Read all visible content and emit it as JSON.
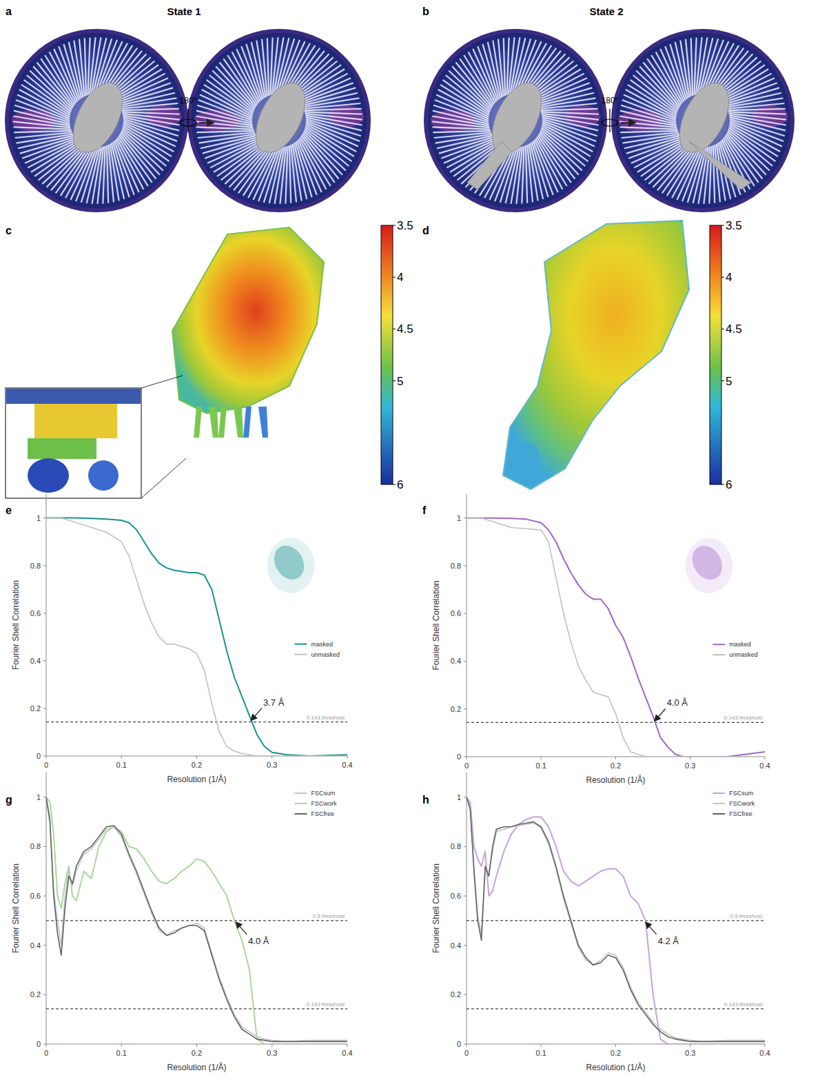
{
  "figure": {
    "panels": [
      "a",
      "b",
      "c",
      "d",
      "e",
      "f",
      "g",
      "h"
    ],
    "states": [
      "State 1",
      "State 2"
    ],
    "rotation": "180°",
    "colorbars": [
      {
        "range": [
          3.5,
          6
        ],
        "ticks": [
          3.5,
          4,
          4.5,
          5,
          6
        ]
      },
      {
        "range": [
          3.5,
          6
        ],
        "ticks": [
          3.5,
          4,
          4.5,
          5,
          6
        ]
      }
    ]
  },
  "chart_data": [
    {
      "type": "line",
      "x_label": "Resolution (1/Å)",
      "y_label": "Fourier Shell Correlation",
      "xlim": [
        0,
        0.4
      ],
      "ylim": [
        0,
        1.1
      ],
      "xticks": [
        0,
        0.1,
        0.2,
        0.3,
        0.4
      ],
      "yticks": [
        0,
        0.2,
        0.4,
        0.6,
        0.8,
        1
      ],
      "grid": false,
      "legend": "right",
      "x": [
        0,
        0.02,
        0.04,
        0.06,
        0.08,
        0.1,
        0.11,
        0.12,
        0.13,
        0.14,
        0.15,
        0.16,
        0.17,
        0.18,
        0.19,
        0.2,
        0.21,
        0.22,
        0.23,
        0.24,
        0.25,
        0.26,
        0.27,
        0.28,
        0.29,
        0.3,
        0.32,
        0.35,
        0.4
      ],
      "series": [
        {
          "name": "masked",
          "color": "#1a9090",
          "values": [
            1,
            1,
            1,
            0.998,
            0.995,
            0.99,
            0.98,
            0.95,
            0.9,
            0.85,
            0.81,
            0.79,
            0.78,
            0.775,
            0.77,
            0.77,
            0.76,
            0.7,
            0.57,
            0.44,
            0.33,
            0.25,
            0.17,
            0.09,
            0.04,
            0.015,
            0.005,
            0,
            0.005
          ]
        },
        {
          "name": "unmasked",
          "color": "#c0c0c0",
          "values": [
            1,
            1,
            0.98,
            0.96,
            0.94,
            0.9,
            0.84,
            0.74,
            0.64,
            0.56,
            0.5,
            0.47,
            0.47,
            0.46,
            0.45,
            0.43,
            0.36,
            0.22,
            0.1,
            0.04,
            0.02,
            0.01,
            0.005,
            0,
            0,
            0,
            0,
            0,
            0
          ]
        }
      ],
      "thresholds": [
        {
          "value": 0.143,
          "label": "0.143 threshold"
        }
      ],
      "annotations": [
        {
          "text": "3.7 Å",
          "x": 0.27,
          "y": 0.143
        }
      ]
    },
    {
      "type": "line",
      "x_label": "Resolution (1/Å)",
      "y_label": "Fourier Shell Correlation",
      "xlim": [
        0,
        0.4
      ],
      "ylim": [
        0,
        1.1
      ],
      "xticks": [
        0,
        0.1,
        0.2,
        0.3,
        0.4
      ],
      "yticks": [
        0,
        0.2,
        0.4,
        0.6,
        0.8,
        1
      ],
      "grid": false,
      "legend": "right",
      "x": [
        0,
        0.02,
        0.04,
        0.06,
        0.08,
        0.1,
        0.11,
        0.12,
        0.13,
        0.14,
        0.15,
        0.16,
        0.17,
        0.18,
        0.19,
        0.2,
        0.21,
        0.22,
        0.23,
        0.24,
        0.25,
        0.26,
        0.27,
        0.28,
        0.29,
        0.3,
        0.32,
        0.35,
        0.4
      ],
      "series": [
        {
          "name": "masked",
          "color": "#a066c8",
          "values": [
            1,
            1,
            1,
            0.998,
            0.995,
            0.98,
            0.95,
            0.9,
            0.83,
            0.77,
            0.72,
            0.68,
            0.66,
            0.66,
            0.62,
            0.55,
            0.5,
            0.42,
            0.33,
            0.25,
            0.17,
            0.08,
            0.04,
            0.01,
            0,
            0,
            0,
            0,
            0.02
          ]
        },
        {
          "name": "unmasked",
          "color": "#c0c0c0",
          "values": [
            1,
            1,
            0.98,
            0.96,
            0.955,
            0.95,
            0.9,
            0.75,
            0.6,
            0.48,
            0.38,
            0.32,
            0.27,
            0.26,
            0.25,
            0.18,
            0.08,
            0.02,
            0.01,
            0,
            0,
            0,
            0,
            0,
            0,
            0,
            0,
            0,
            0
          ]
        }
      ],
      "thresholds": [
        {
          "value": 0.143,
          "label": "0.143 threshold"
        }
      ],
      "annotations": [
        {
          "text": "4.0 Å",
          "x": 0.25,
          "y": 0.143
        }
      ]
    },
    {
      "type": "line",
      "x_label": "Resolution (1/Å)",
      "y_label": "Fourier Shell Correlation",
      "xlim": [
        0,
        0.4
      ],
      "ylim": [
        0,
        1.1
      ],
      "xticks": [
        0,
        0.1,
        0.2,
        0.3,
        0.4
      ],
      "yticks": [
        0,
        0.2,
        0.4,
        0.6,
        0.8,
        1
      ],
      "grid": false,
      "legend": "upper right",
      "x": [
        0,
        0.005,
        0.01,
        0.015,
        0.02,
        0.025,
        0.03,
        0.035,
        0.04,
        0.05,
        0.06,
        0.07,
        0.08,
        0.09,
        0.1,
        0.11,
        0.12,
        0.13,
        0.14,
        0.15,
        0.16,
        0.17,
        0.18,
        0.19,
        0.2,
        0.21,
        0.22,
        0.23,
        0.24,
        0.25,
        0.26,
        0.27,
        0.28,
        0.29,
        0.3,
        0.32,
        0.35,
        0.4
      ],
      "series": [
        {
          "name": "FSCsum",
          "color": "#a8d89a",
          "values": [
            1,
            0.98,
            0.85,
            0.6,
            0.55,
            0.65,
            0.72,
            0.6,
            0.58,
            0.7,
            0.67,
            0.8,
            0.86,
            0.88,
            0.86,
            0.8,
            0.79,
            0.75,
            0.7,
            0.66,
            0.65,
            0.67,
            0.7,
            0.72,
            0.75,
            0.74,
            0.7,
            0.65,
            0.6,
            0.5,
            0.42,
            0.3,
            0.02,
            0,
            0,
            0,
            0,
            0
          ]
        },
        {
          "name": "FSCwork",
          "color": "#c4c4c4",
          "values": [
            1,
            0.92,
            0.62,
            0.5,
            0.4,
            0.6,
            0.7,
            0.64,
            0.7,
            0.77,
            0.79,
            0.83,
            0.87,
            0.88,
            0.84,
            0.76,
            0.69,
            0.61,
            0.53,
            0.46,
            0.44,
            0.46,
            0.47,
            0.48,
            0.49,
            0.47,
            0.37,
            0.27,
            0.19,
            0.12,
            0.07,
            0.05,
            0.03,
            0.02,
            0.015,
            0.01,
            0.015,
            0.015
          ]
        },
        {
          "name": "FSCfree",
          "color": "#606060",
          "values": [
            1,
            0.9,
            0.6,
            0.45,
            0.36,
            0.55,
            0.68,
            0.65,
            0.72,
            0.78,
            0.8,
            0.84,
            0.88,
            0.885,
            0.85,
            0.77,
            0.7,
            0.62,
            0.54,
            0.47,
            0.44,
            0.45,
            0.47,
            0.48,
            0.48,
            0.46,
            0.36,
            0.26,
            0.18,
            0.11,
            0.06,
            0.04,
            0.02,
            0.015,
            0.01,
            0.01,
            0.01,
            0.01
          ]
        }
      ],
      "thresholds": [
        {
          "value": 0.5,
          "label": "0.5 threshold"
        },
        {
          "value": 0.143,
          "label": "0.143 threshold"
        }
      ],
      "annotations": [
        {
          "text": "4.0 Å",
          "x": 0.25,
          "y": 0.5
        }
      ]
    },
    {
      "type": "line",
      "x_label": "Resolution (1/Å)",
      "y_label": "Fourier Shell Correlation",
      "xlim": [
        0,
        0.4
      ],
      "ylim": [
        0,
        1.1
      ],
      "xticks": [
        0,
        0.1,
        0.2,
        0.3,
        0.4
      ],
      "yticks": [
        0,
        0.2,
        0.4,
        0.6,
        0.8,
        1
      ],
      "grid": false,
      "legend": "upper right",
      "x": [
        0,
        0.005,
        0.01,
        0.015,
        0.02,
        0.025,
        0.03,
        0.035,
        0.04,
        0.05,
        0.06,
        0.07,
        0.08,
        0.09,
        0.1,
        0.11,
        0.12,
        0.13,
        0.14,
        0.15,
        0.16,
        0.17,
        0.18,
        0.19,
        0.2,
        0.21,
        0.22,
        0.23,
        0.24,
        0.25,
        0.26,
        0.27,
        0.28,
        0.29,
        0.3,
        0.32,
        0.35,
        0.4
      ],
      "series": [
        {
          "name": "FSCsum",
          "color": "#c8a0dc",
          "values": [
            1,
            0.98,
            0.8,
            0.75,
            0.72,
            0.78,
            0.6,
            0.62,
            0.68,
            0.78,
            0.85,
            0.89,
            0.91,
            0.92,
            0.92,
            0.88,
            0.8,
            0.7,
            0.66,
            0.64,
            0.66,
            0.68,
            0.7,
            0.71,
            0.71,
            0.68,
            0.6,
            0.57,
            0.5,
            0.2,
            0.02,
            0,
            0,
            0,
            0,
            0,
            0,
            0
          ]
        },
        {
          "name": "FSCwork",
          "color": "#c4c4c4",
          "values": [
            1,
            0.96,
            0.72,
            0.52,
            0.45,
            0.7,
            0.7,
            0.78,
            0.86,
            0.87,
            0.88,
            0.885,
            0.89,
            0.895,
            0.875,
            0.81,
            0.71,
            0.59,
            0.49,
            0.39,
            0.34,
            0.32,
            0.34,
            0.37,
            0.36,
            0.31,
            0.23,
            0.17,
            0.13,
            0.09,
            0.06,
            0.04,
            0.025,
            0.02,
            0.015,
            0.01,
            0.015,
            0.015
          ]
        },
        {
          "name": "FSCfree",
          "color": "#606060",
          "values": [
            1,
            0.95,
            0.7,
            0.5,
            0.42,
            0.72,
            0.68,
            0.8,
            0.87,
            0.88,
            0.88,
            0.89,
            0.895,
            0.9,
            0.88,
            0.82,
            0.72,
            0.6,
            0.5,
            0.4,
            0.35,
            0.32,
            0.33,
            0.36,
            0.35,
            0.3,
            0.22,
            0.16,
            0.12,
            0.08,
            0.05,
            0.03,
            0.02,
            0.015,
            0.01,
            0.01,
            0.01,
            0.01
          ]
        }
      ],
      "thresholds": [
        {
          "value": 0.5,
          "label": "0.5 threshold"
        },
        {
          "value": 0.143,
          "label": "0.143 threshold"
        }
      ],
      "annotations": [
        {
          "text": "4.2 Å",
          "x": 0.238,
          "y": 0.5
        }
      ]
    }
  ]
}
